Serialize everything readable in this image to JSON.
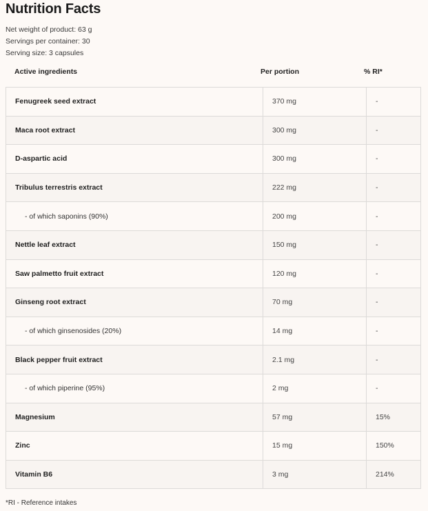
{
  "title": "Nutrition Facts",
  "info": [
    "Net weight of product: 63 g",
    "Servings per container: 30",
    "Serving size: 3 capsules"
  ],
  "headers": {
    "ingredient": "Active ingredients",
    "portion": "Per portion",
    "ri": "% RI*"
  },
  "rows": [
    {
      "name": "Fenugreek seed extract",
      "amount": "370 mg",
      "ri": "-",
      "sub": false
    },
    {
      "name": "Maca root extract",
      "amount": "300 mg",
      "ri": "-",
      "sub": false
    },
    {
      "name": "D-aspartic acid",
      "amount": "300 mg",
      "ri": "-",
      "sub": false
    },
    {
      "name": "Tribulus terrestris extract",
      "amount": "222 mg",
      "ri": "-",
      "sub": false
    },
    {
      "name": "- of which saponins (90%)",
      "amount": "200 mg",
      "ri": "-",
      "sub": true
    },
    {
      "name": "Nettle leaf extract",
      "amount": "150 mg",
      "ri": "-",
      "sub": false
    },
    {
      "name": "Saw palmetto fruit extract",
      "amount": "120 mg",
      "ri": "-",
      "sub": false
    },
    {
      "name": "Ginseng root extract",
      "amount": "70 mg",
      "ri": "-",
      "sub": false
    },
    {
      "name": "- of which ginsenosides (20%)",
      "amount": "14 mg",
      "ri": "-",
      "sub": true
    },
    {
      "name": "Black pepper fruit extract",
      "amount": "2.1 mg",
      "ri": "-",
      "sub": false
    },
    {
      "name": "- of which piperine (95%)",
      "amount": "2 mg",
      "ri": "-",
      "sub": true
    },
    {
      "name": "Magnesium",
      "amount": "57 mg",
      "ri": "15%",
      "sub": false
    },
    {
      "name": "Zinc",
      "amount": "15 mg",
      "ri": "150%",
      "sub": false
    },
    {
      "name": "Vitamin B6",
      "amount": "3 mg",
      "ri": "214%",
      "sub": false
    }
  ],
  "footnote": "*RI - Reference intakes"
}
